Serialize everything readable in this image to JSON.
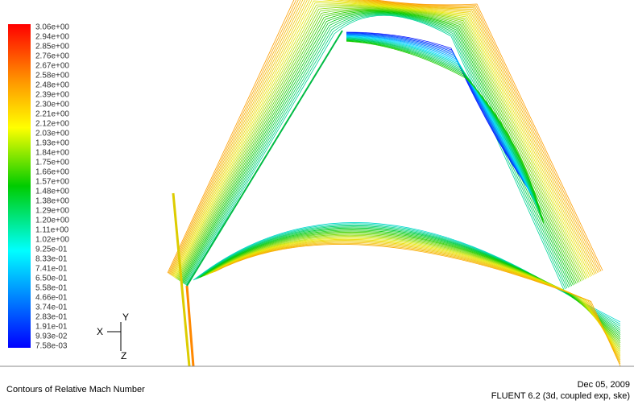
{
  "colorbar": {
    "labels": [
      "3.06e+00",
      "2.94e+00",
      "2.85e+00",
      "2.76e+00",
      "2.67e+00",
      "2.58e+00",
      "2.48e+00",
      "2.39e+00",
      "2.30e+00",
      "2.21e+00",
      "2.12e+00",
      "2.03e+00",
      "1.93e+00",
      "1.84e+00",
      "1.75e+00",
      "1.66e+00",
      "1.57e+00",
      "1.48e+00",
      "1.38e+00",
      "1.29e+00",
      "1.20e+00",
      "1.11e+00",
      "1.02e+00",
      "9.25e-01",
      "8.33e-01",
      "7.41e-01",
      "6.50e-01",
      "5.58e-01",
      "4.66e-01",
      "3.74e-01",
      "2.83e-01",
      "1.91e-01",
      "9.93e-02",
      "7.58e-03"
    ]
  },
  "axes": {
    "x": "X",
    "y": "Y",
    "z": "Z"
  },
  "footer": {
    "title": "Contours of Relative Mach Number",
    "date": "Dec 05, 2009",
    "solver": "FLUENT 6.2 (3d, coupled exp, ske)"
  }
}
